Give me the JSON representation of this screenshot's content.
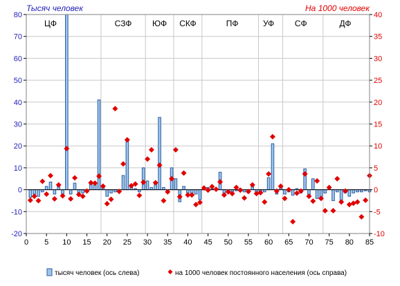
{
  "chart_data": {
    "type": "bar+scatter",
    "left_axis_title": "Тысяч человек",
    "right_axis_title": "На 1000 человек",
    "xlim": [
      0,
      85
    ],
    "x_ticks": [
      "0",
      "5",
      "10",
      "15",
      "20",
      "25",
      "30",
      "35",
      "40",
      "45",
      "50",
      "55",
      "60",
      "65",
      "70",
      "75",
      "80",
      "85"
    ],
    "ylim_left": [
      -20,
      80
    ],
    "y_ticks_left": [
      "-20",
      "-10",
      "0",
      "10",
      "20",
      "30",
      "40",
      "50",
      "60",
      "70",
      "80"
    ],
    "ylim_right": [
      -10,
      40
    ],
    "y_ticks_right": [
      "-10",
      "-5",
      "0",
      "5",
      "10",
      "15",
      "20",
      "25",
      "30",
      "35",
      "40"
    ],
    "grid": true,
    "regions": [
      {
        "label": "ЦФ",
        "start": 0.5,
        "end": 18.5,
        "label_x": 6
      },
      {
        "label": "СЗФ",
        "start": 18.5,
        "end": 29.5,
        "label_x": 24
      },
      {
        "label": "ЮФ",
        "start": 29.5,
        "end": 36.5,
        "label_x": 33
      },
      {
        "label": "СКФ",
        "start": 36.5,
        "end": 43.5,
        "label_x": 40
      },
      {
        "label": "ПФ",
        "start": 43.5,
        "end": 57.5,
        "label_x": 51
      },
      {
        "label": "УФ",
        "start": 57.5,
        "end": 63.5,
        "label_x": 60
      },
      {
        "label": "СФ",
        "start": 63.5,
        "end": 73.5,
        "label_x": 68
      },
      {
        "label": "ДФ",
        "start": 73.5,
        "end": 85.5,
        "label_x": 79
      }
    ],
    "series": [
      {
        "name": "тысяч человек (ось слева)",
        "kind": "bar",
        "axis": "left",
        "color": "#9fc5ee",
        "stroke": "#2a5d9f",
        "x": [
          1,
          2,
          3,
          4,
          5,
          6,
          7,
          8,
          9,
          10,
          11,
          12,
          13,
          14,
          15,
          16,
          17,
          18,
          19,
          20,
          21,
          22,
          23,
          24,
          25,
          26,
          27,
          28,
          29,
          30,
          31,
          32,
          33,
          34,
          35,
          36,
          37,
          38,
          39,
          40,
          41,
          42,
          43,
          44,
          45,
          46,
          47,
          48,
          49,
          50,
          51,
          52,
          53,
          54,
          55,
          56,
          57,
          58,
          59,
          60,
          61,
          62,
          63,
          64,
          65,
          66,
          67,
          68,
          69,
          70,
          71,
          72,
          73,
          74,
          75,
          76,
          77,
          78,
          79,
          80,
          81,
          82,
          83,
          84,
          85
        ],
        "y": [
          -3.5,
          -2,
          -3,
          -1,
          1.5,
          3.5,
          -2,
          2,
          -2,
          80,
          -2,
          3,
          -2.5,
          -1.5,
          -1,
          3,
          3,
          41,
          1,
          -3,
          -1.5,
          -1,
          -0.5,
          6.5,
          22.5,
          2,
          0.5,
          -1,
          10,
          4,
          1,
          3,
          33,
          1,
          -1.5,
          10,
          5,
          -5.5,
          1.5,
          -1.5,
          -2.5,
          -2,
          -4.5,
          1,
          1,
          0.5,
          0,
          8,
          -2,
          -1,
          -1,
          -0.5,
          0.5,
          -1,
          -1.5,
          1.5,
          -1,
          -1,
          -1,
          5.5,
          21,
          -2,
          1.5,
          -2,
          -1,
          -2.5,
          0.5,
          -1.5,
          9.5,
          -3.5,
          5,
          -4,
          -4.5,
          -1.5,
          1,
          -5,
          -1,
          -5,
          -1.5,
          -3,
          -1.5,
          -1,
          -1,
          -0.5,
          -1
        ]
      },
      {
        "name": "на 1000 человек постоянного населения (ось справа)",
        "kind": "scatter",
        "axis": "right",
        "color": "#e00000",
        "x": [
          1,
          2,
          3,
          4,
          5,
          6,
          7,
          8,
          9,
          10,
          11,
          12,
          13,
          14,
          15,
          16,
          17,
          18,
          19,
          20,
          21,
          22,
          23,
          24,
          25,
          26,
          27,
          28,
          29,
          30,
          31,
          32,
          33,
          34,
          35,
          36,
          37,
          38,
          39,
          40,
          41,
          42,
          43,
          44,
          45,
          46,
          47,
          48,
          49,
          50,
          51,
          52,
          53,
          54,
          55,
          56,
          57,
          58,
          59,
          60,
          61,
          62,
          63,
          64,
          65,
          66,
          67,
          68,
          69,
          70,
          71,
          72,
          73,
          74,
          75,
          76,
          77,
          78,
          79,
          80,
          81,
          82,
          83,
          84,
          85
        ],
        "y": [
          -2.4,
          -1.5,
          -2.5,
          1.9,
          -1,
          3.2,
          -2.1,
          1.1,
          -1.4,
          9.4,
          -2.1,
          2.7,
          -1.1,
          -1.5,
          -0.3,
          1.6,
          1.5,
          3.1,
          0.8,
          -3.2,
          -2.2,
          18.5,
          -0.4,
          5.9,
          11.4,
          0.9,
          1.3,
          -1.3,
          1.7,
          7,
          9.1,
          1.6,
          5.6,
          -2.5,
          -0.5,
          2.5,
          9.1,
          -1.6,
          3.8,
          -1.2,
          -1.2,
          -3.4,
          -2.9,
          0.4,
          -0.1,
          0.7,
          0.1,
          1.8,
          -1.2,
          -0.5,
          -0.9,
          0.5,
          -0.1,
          -1.9,
          -0.4,
          1.1,
          -0.9,
          -0.7,
          -2.8,
          3.6,
          12.1,
          -0.3,
          0.8,
          -2,
          0,
          -7.3,
          -0.8,
          -0.3,
          3.6,
          -1.5,
          -2.6,
          2,
          -2,
          -4.8,
          0.5,
          -4.8,
          2.5,
          -2.8,
          -0.3,
          -3.4,
          -3.1,
          -2.8,
          -6.2,
          -2.4,
          3.2
        ]
      }
    ]
  }
}
